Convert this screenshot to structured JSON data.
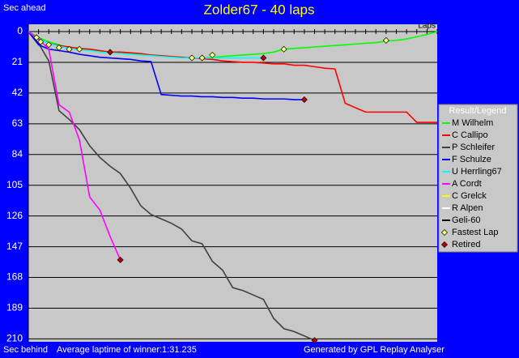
{
  "chart_data": {
    "type": "line",
    "title": "Zolder67 - 40 laps",
    "y_label_top": "Sec ahead",
    "y_label_bottom": "Sec behind",
    "x_label": "Laps",
    "footer_left": "Average laptime of winner:1:31.235",
    "footer_right": "Generated by GPL Replay Analyser",
    "legend_title": "Result/Legend",
    "xlim": [
      0,
      40
    ],
    "ylim": [
      -5,
      212
    ],
    "y_inverted": true,
    "grid": true,
    "xticks": [
      0,
      1,
      2,
      3,
      4,
      5,
      6,
      7,
      8,
      9,
      10,
      11,
      12,
      13,
      14,
      15,
      16,
      17,
      18,
      19,
      20,
      21,
      22,
      23,
      24,
      25,
      26,
      27,
      28,
      29,
      30,
      31,
      32,
      33,
      34,
      35,
      36,
      37,
      38,
      39,
      40
    ],
    "yticks": [
      0,
      21,
      42,
      63,
      84,
      105,
      126,
      147,
      168,
      189,
      210
    ],
    "x": [
      0,
      1,
      2,
      3,
      4,
      5,
      6,
      7,
      8,
      9,
      10,
      11,
      12,
      13,
      14,
      15,
      16,
      17,
      18,
      19,
      20,
      21,
      22,
      23,
      24,
      25,
      26,
      27,
      28,
      29,
      30,
      31,
      32,
      33,
      34,
      35,
      36,
      37,
      38,
      39,
      40
    ],
    "series": [
      {
        "name": "M Wilhelm",
        "color": "#00ff00",
        "values": [
          0,
          4,
          7,
          9,
          11,
          12,
          12.5,
          13,
          14,
          14.5,
          15,
          15.5,
          16,
          16.5,
          17,
          17.5,
          18,
          18,
          17.5,
          17,
          16.5,
          16,
          15.5,
          15,
          14,
          12,
          11.5,
          11,
          10.5,
          10,
          9.5,
          9,
          8.5,
          8,
          7.5,
          6.5,
          6,
          5,
          3.5,
          2,
          0
        ]
      },
      {
        "name": "C Callipo",
        "color": "#ff0000",
        "values": [
          0,
          5,
          8,
          9.5,
          10.5,
          11.5,
          12,
          13,
          14,
          14,
          14.5,
          15,
          16,
          16.5,
          17,
          17.5,
          18,
          18.5,
          19,
          20,
          20.5,
          21,
          21,
          21.5,
          22,
          22,
          23,
          23,
          24,
          25,
          25.5,
          49,
          52,
          55,
          55,
          55,
          55,
          55,
          62,
          62,
          62
        ]
      },
      {
        "name": "P Schleifer",
        "color": "#404040",
        "values": [
          0,
          8,
          20,
          54,
          60,
          67,
          78,
          86,
          92,
          97,
          107,
          119,
          125,
          128,
          131,
          135,
          143,
          145,
          157,
          163,
          175,
          177,
          180,
          183,
          196,
          203,
          205,
          208,
          211,
          null,
          null,
          null,
          null,
          null,
          null,
          null,
          null,
          null,
          null,
          null,
          null
        ]
      },
      {
        "name": "F Schulze",
        "color": "#0000ff",
        "values": [
          0,
          9,
          12,
          13,
          14,
          15.5,
          16.5,
          17.5,
          18,
          18.5,
          19,
          20,
          20.5,
          43,
          43.5,
          44,
          44,
          44.5,
          44.5,
          45,
          45,
          45.5,
          45.5,
          46,
          46,
          46,
          46.5,
          46.5,
          null,
          null,
          null,
          null,
          null,
          null,
          null,
          null,
          null,
          null,
          null,
          null,
          null
        ]
      },
      {
        "name": "U Herrling67",
        "color": "#00ffff",
        "values": [
          0,
          5,
          8,
          10,
          11.5,
          12.5,
          13,
          14,
          14.5,
          15,
          15.5,
          16,
          16.5,
          17,
          17.5,
          18,
          18,
          18,
          18,
          18,
          18,
          18,
          18,
          18,
          null,
          null,
          null,
          null,
          null,
          null,
          null,
          null,
          null,
          null,
          null,
          null,
          null,
          null,
          null,
          null,
          null
        ]
      },
      {
        "name": "A Cordt",
        "color": "#ff00ff",
        "values": [
          0,
          5,
          12,
          50,
          55,
          74,
          113,
          122,
          140,
          156,
          null,
          null,
          null,
          null,
          null,
          null,
          null,
          null,
          null,
          null,
          null,
          null,
          null,
          null,
          null,
          null,
          null,
          null,
          null,
          null,
          null,
          null,
          null,
          null,
          null,
          null,
          null,
          null,
          null,
          null,
          null
        ]
      },
      {
        "name": "C Grelck",
        "color": "#ffff00",
        "values": [
          null,
          null,
          null,
          null,
          null,
          null,
          null,
          null,
          null,
          null,
          null,
          null,
          null,
          null,
          null,
          null,
          null,
          null,
          null,
          null,
          null,
          null,
          null,
          null,
          null,
          null,
          null,
          null,
          null,
          null,
          null,
          null,
          null,
          null,
          null,
          null,
          null,
          null,
          null,
          null,
          null
        ]
      },
      {
        "name": "R Alpen",
        "color": "#ffffff",
        "values": [
          null,
          null,
          null,
          null,
          null,
          null,
          null,
          null,
          null,
          null,
          null,
          null,
          null,
          null,
          null,
          null,
          null,
          null,
          null,
          null,
          null,
          null,
          null,
          null,
          null,
          null,
          null,
          null,
          null,
          null,
          null,
          null,
          null,
          null,
          null,
          null,
          null,
          null,
          null,
          null,
          null
        ]
      },
      {
        "name": "Geli-60",
        "color": "#000000",
        "values": [
          null,
          null,
          null,
          null,
          null,
          null,
          null,
          null,
          null,
          null,
          null,
          null,
          null,
          null,
          null,
          null,
          null,
          null,
          null,
          null,
          null,
          null,
          null,
          null,
          null,
          null,
          null,
          null,
          null,
          null,
          null,
          null,
          null,
          null,
          null,
          null,
          null,
          null,
          null,
          null,
          null
        ]
      }
    ],
    "fastest_laps": {
      "name": "Fastest Lap",
      "color": "#ffff80",
      "x": [
        0.8,
        1.2,
        2,
        3,
        4,
        5,
        16,
        17,
        18,
        25,
        35
      ],
      "values": [
        4,
        7,
        9,
        11,
        12,
        12,
        18,
        18,
        16,
        12,
        6
      ]
    },
    "retired": {
      "name": "Retired",
      "color": "#c00000",
      "x": [
        8,
        9,
        23,
        27,
        28
      ],
      "values": [
        14,
        156,
        18,
        46.5,
        211
      ]
    }
  }
}
